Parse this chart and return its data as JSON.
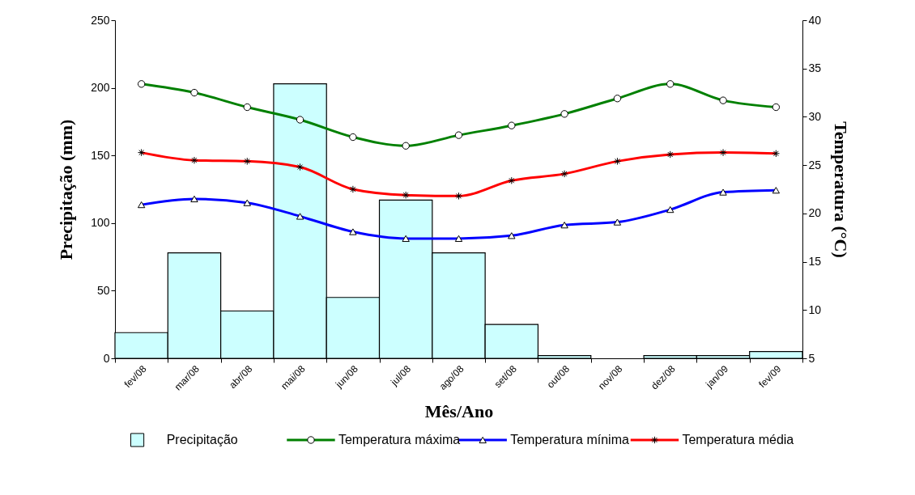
{
  "chart_data": {
    "type": "bar",
    "xlabel": "Mês/Ano",
    "ylabel": "Precipitação (mm)",
    "y2label": "Temperatura (°C)",
    "categories": [
      "fev/08",
      "mar/08",
      "abr/08",
      "mai/08",
      "jun/08",
      "jul/08",
      "ago/08",
      "set/08",
      "out/08",
      "nov/08",
      "dez/08",
      "jan/09",
      "fev/09"
    ],
    "series": [
      {
        "name": "Precipitação",
        "color": "#ccffff",
        "values": [
          19,
          78,
          35,
          203,
          45,
          117,
          78,
          25,
          2,
          0,
          2,
          2,
          5
        ]
      },
      {
        "name": "Temperatura máxima",
        "type": "line",
        "axis": "y2",
        "marker": "circle",
        "color": "#008000",
        "values": [
          33.4,
          32.5,
          31.0,
          29.7,
          27.9,
          27.0,
          28.1,
          29.1,
          30.3,
          31.9,
          33.4,
          31.7,
          31.0
        ]
      },
      {
        "name": "Temperatura mínima",
        "type": "line",
        "axis": "y2",
        "marker": "triangle",
        "color": "#0000ff",
        "values": [
          20.9,
          21.5,
          21.1,
          19.7,
          18.1,
          17.4,
          17.4,
          17.7,
          18.8,
          19.1,
          20.4,
          22.2,
          22.4
        ]
      },
      {
        "name": "Temperatura média",
        "type": "line",
        "axis": "y2",
        "marker": "cross",
        "color": "#ff0000",
        "values": [
          26.3,
          25.5,
          25.4,
          24.8,
          22.5,
          21.9,
          21.8,
          23.4,
          24.1,
          25.4,
          26.1,
          26.3,
          26.2
        ]
      }
    ],
    "ylim": [
      0,
      250
    ],
    "yticks": [
      0,
      50,
      100,
      150,
      200,
      250
    ],
    "y2lim": [
      5,
      40
    ],
    "y2ticks": [
      5,
      10,
      15,
      20,
      25,
      30,
      35,
      40
    ],
    "grid": false,
    "legend": "bottom"
  }
}
